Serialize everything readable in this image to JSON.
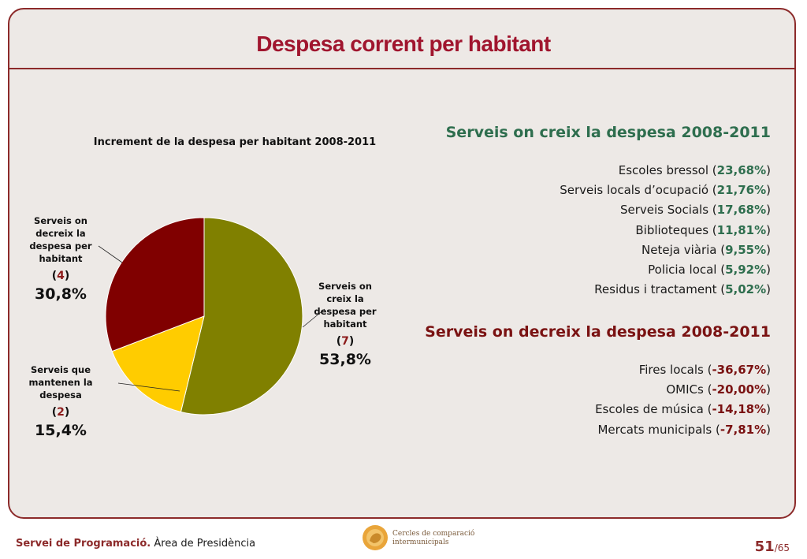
{
  "slide": {
    "title": "Despesa corrent per habitant"
  },
  "chart_data": {
    "type": "pie",
    "title": "Increment de la despesa per habitant 2008-2011",
    "slices": [
      {
        "label_lines": [
          "Serveis on",
          "creix la",
          "despesa per",
          "habitant"
        ],
        "count_open": "(",
        "count": "7",
        "count_close": ")",
        "percent_label": "53,8%",
        "value": 53.8,
        "color": "#808000"
      },
      {
        "label_lines": [
          "Serveis que",
          "mantenen la",
          "despesa"
        ],
        "count_open": "(",
        "count": "2",
        "count_close": ")",
        "percent_label": "15,4%",
        "value": 15.4,
        "color": "#ffcc00"
      },
      {
        "label_lines": [
          "Serveis on",
          "decreix la",
          "despesa per",
          "habitant"
        ],
        "count_open": "(",
        "count": "4",
        "count_close": ")",
        "percent_label": "30,8%",
        "value": 30.8,
        "color": "#800000"
      }
    ],
    "colors": {
      "count_number": "#8c1a1a",
      "edge": "#ffffff"
    }
  },
  "increase": {
    "heading": "Serveis on creix la despesa 2008-2011",
    "items": [
      {
        "name": "Escoles bressol (",
        "pct": "23,68%",
        "close": ")"
      },
      {
        "name": "Serveis locals d’ocupació (",
        "pct": "21,76%",
        "close": ")"
      },
      {
        "name": "Serveis Socials (",
        "pct": "17,68%",
        "close": ")"
      },
      {
        "name": "Biblioteques (",
        "pct": "11,81%",
        "close": ")"
      },
      {
        "name": "Neteja viària (",
        "pct": "9,55%",
        "close": ")"
      },
      {
        "name": "Policia local (",
        "pct": "5,92%",
        "close": ")"
      },
      {
        "name": "Residus i tractament (",
        "pct": "5,02%",
        "close": ")"
      }
    ]
  },
  "decrease": {
    "heading": "Serveis on decreix la despesa 2008-2011",
    "items": [
      {
        "name": "Fires locals (",
        "pct": "-36,67%",
        "close": ")"
      },
      {
        "name": "OMICs (",
        "pct": "-20,00%",
        "close": ")"
      },
      {
        "name": "Escoles de música (",
        "pct": "-14,18%",
        "close": ")"
      },
      {
        "name": "Mercats municipals (",
        "pct": "-7,81%",
        "close": ")"
      }
    ]
  },
  "footer": {
    "org": "Servei de Programació.",
    "dept": " Àrea de Presidència",
    "logo_line1": "Cercles de comparació",
    "logo_line2": "intermunicipals",
    "page_current": "51",
    "page_total": "/65"
  }
}
